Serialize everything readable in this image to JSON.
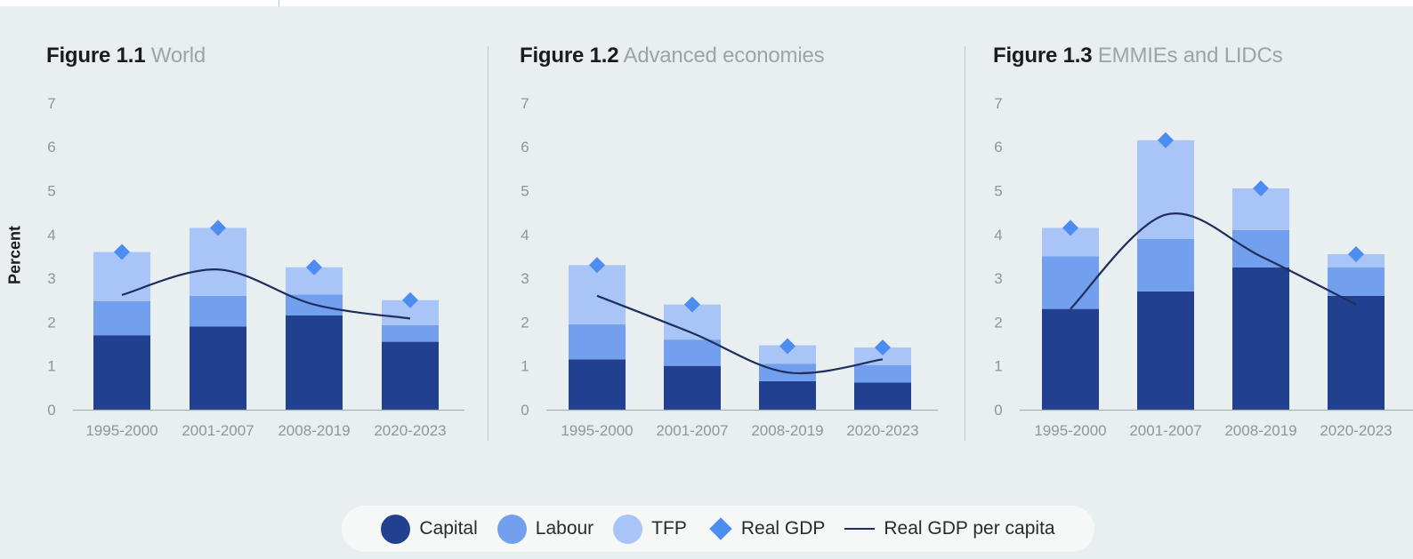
{
  "colors": {
    "capital": "#21408f",
    "labour": "#72a0ef",
    "tfp": "#a9c4f7",
    "real_gdp": "#4b8df0",
    "per_capita": "#1f2e5c",
    "axis_text": "#8d969e"
  },
  "y_axis_title": "Percent",
  "legend": {
    "capital": "Capital",
    "labour": "Labour",
    "tfp": "TFP",
    "real_gdp": "Real GDP",
    "per_capita": "Real GDP per capita"
  },
  "chart_data": [
    {
      "type": "bar",
      "stacked": true,
      "title": "Figure 1.1",
      "subtitle": "World",
      "ylim": [
        0,
        7
      ],
      "yticks": [
        "0",
        "1",
        "2",
        "3",
        "4",
        "5",
        "6",
        "7"
      ],
      "grid": false,
      "categories": [
        "1995-2000",
        "2001-2007",
        "2008-2019",
        "2020-2023"
      ],
      "series": [
        {
          "name": "Capital",
          "values": [
            1.7,
            1.9,
            2.15,
            1.55
          ]
        },
        {
          "name": "Labour",
          "values": [
            0.78,
            0.7,
            0.48,
            0.38
          ]
        },
        {
          "name": "TFP",
          "values": [
            1.12,
            1.55,
            0.62,
            0.57
          ]
        }
      ],
      "real_gdp": [
        3.6,
        4.15,
        3.25,
        2.5
      ],
      "real_gdp_per_capita": [
        2.62,
        3.2,
        2.4,
        2.08
      ]
    },
    {
      "type": "bar",
      "stacked": true,
      "title": "Figure 1.2",
      "subtitle": "Advanced economies",
      "ylim": [
        0,
        7
      ],
      "yticks": [
        "0",
        "1",
        "2",
        "3",
        "4",
        "5",
        "6",
        "7"
      ],
      "grid": false,
      "categories": [
        "1995-2000",
        "2001-2007",
        "2008-2019",
        "2020-2023"
      ],
      "series": [
        {
          "name": "Capital",
          "values": [
            1.15,
            1.0,
            0.65,
            0.62
          ]
        },
        {
          "name": "Labour",
          "values": [
            0.8,
            0.6,
            0.4,
            0.4
          ]
        },
        {
          "name": "TFP",
          "values": [
            1.35,
            0.8,
            0.42,
            0.4
          ]
        }
      ],
      "real_gdp": [
        3.3,
        2.4,
        1.45,
        1.42
      ],
      "real_gdp_per_capita": [
        2.6,
        1.75,
        0.85,
        1.15
      ]
    },
    {
      "type": "bar",
      "stacked": true,
      "title": "Figure 1.3",
      "subtitle": "EMMIEs and LIDCs",
      "ylim": [
        0,
        7
      ],
      "yticks": [
        "0",
        "1",
        "2",
        "3",
        "4",
        "5",
        "6",
        "7"
      ],
      "grid": false,
      "categories": [
        "1995-2000",
        "2001-2007",
        "2008-2019",
        "2020-2023"
      ],
      "series": [
        {
          "name": "Capital",
          "values": [
            2.3,
            2.7,
            3.25,
            2.6
          ]
        },
        {
          "name": "Labour",
          "values": [
            1.2,
            1.2,
            0.85,
            0.65
          ]
        },
        {
          "name": "TFP",
          "values": [
            0.65,
            2.25,
            0.95,
            0.3
          ]
        }
      ],
      "real_gdp": [
        4.15,
        6.15,
        5.05,
        3.55
      ],
      "real_gdp_per_capita": [
        2.3,
        4.45,
        3.5,
        2.4
      ]
    }
  ]
}
